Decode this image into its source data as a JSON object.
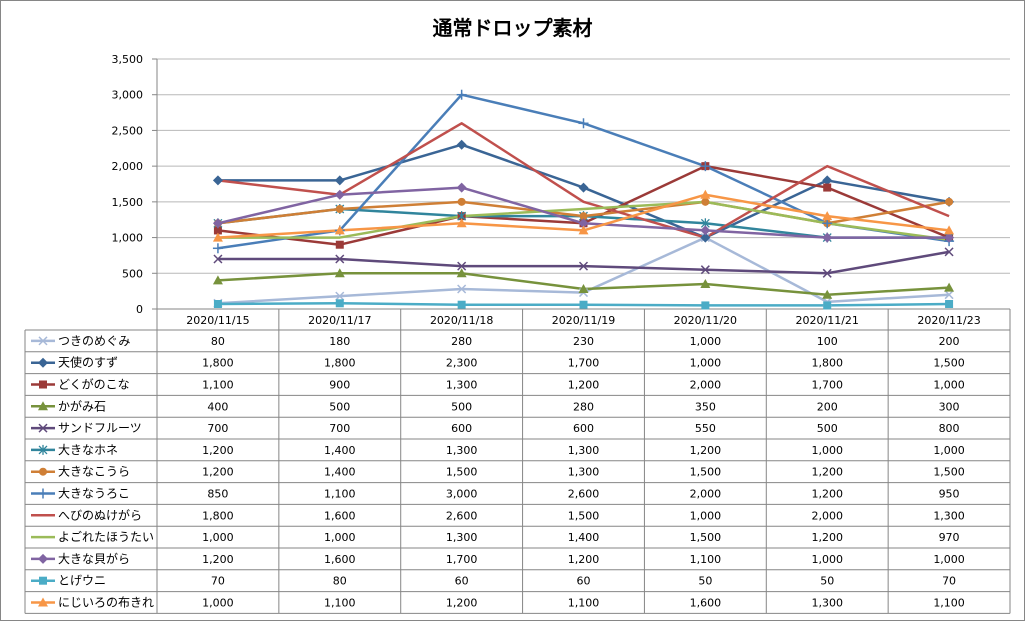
{
  "chart_data": {
    "type": "line",
    "title": "通常ドロップ素材",
    "xlabel": "",
    "ylabel": "",
    "ylim": [
      0,
      3500
    ],
    "yticks": [
      "0",
      "500",
      "1,000",
      "1,500",
      "2,000",
      "2,500",
      "3,000",
      "3,500"
    ],
    "yticks_values": [
      0,
      500,
      1000,
      1500,
      2000,
      2500,
      3000,
      3500
    ],
    "grid": true,
    "legend": "data-table",
    "categories": [
      "2020/11/15",
      "2020/11/17",
      "2020/11/18",
      "2020/11/19",
      "2020/11/20",
      "2020/11/21",
      "2020/11/23"
    ],
    "series": [
      {
        "name": "つきのめぐみ",
        "color": "#a7b9d8",
        "marker": "x",
        "values": [
          80,
          180,
          280,
          230,
          1000,
          100,
          200
        ],
        "labels": [
          "80",
          "180",
          "280",
          "230",
          "1,000",
          "100",
          "200"
        ]
      },
      {
        "name": "天使のすず",
        "color": "#3a6595",
        "marker": "diamond",
        "values": [
          1800,
          1800,
          2300,
          1700,
          1000,
          1800,
          1500
        ],
        "labels": [
          "1,800",
          "1,800",
          "2,300",
          "1,700",
          "1,000",
          "1,800",
          "1,500"
        ]
      },
      {
        "name": "どくがのこな",
        "color": "#9b3a38",
        "marker": "square",
        "values": [
          1100,
          900,
          1300,
          1200,
          2000,
          1700,
          1000
        ],
        "labels": [
          "1,100",
          "900",
          "1,300",
          "1,200",
          "2,000",
          "1,700",
          "1,000"
        ]
      },
      {
        "name": "かがみ石",
        "color": "#77923c",
        "marker": "triangle",
        "values": [
          400,
          500,
          500,
          280,
          350,
          200,
          300
        ],
        "labels": [
          "400",
          "500",
          "500",
          "280",
          "350",
          "200",
          "300"
        ]
      },
      {
        "name": "サンドフルーツ",
        "color": "#5f4a7b",
        "marker": "x",
        "values": [
          700,
          700,
          600,
          600,
          550,
          500,
          800
        ],
        "labels": [
          "700",
          "700",
          "600",
          "600",
          "550",
          "500",
          "800"
        ]
      },
      {
        "name": "大きなホネ",
        "color": "#31859c",
        "marker": "star",
        "values": [
          1200,
          1400,
          1300,
          1300,
          1200,
          1000,
          1000
        ],
        "labels": [
          "1,200",
          "1,400",
          "1,300",
          "1,300",
          "1,200",
          "1,000",
          "1,000"
        ]
      },
      {
        "name": "大きなこうら",
        "color": "#cf7f36",
        "marker": "circle",
        "values": [
          1200,
          1400,
          1500,
          1300,
          1500,
          1200,
          1500
        ],
        "labels": [
          "1,200",
          "1,400",
          "1,500",
          "1,300",
          "1,500",
          "1,200",
          "1,500"
        ]
      },
      {
        "name": "大きなうろこ",
        "color": "#4a7eb8",
        "marker": "plus",
        "values": [
          850,
          1100,
          3000,
          2600,
          2000,
          1200,
          950
        ],
        "labels": [
          "850",
          "1,100",
          "3,000",
          "2,600",
          "2,000",
          "1,200",
          "950"
        ]
      },
      {
        "name": "へびのぬけがら",
        "color": "#c0504d",
        "marker": "none",
        "values": [
          1800,
          1600,
          2600,
          1500,
          1000,
          2000,
          1300
        ],
        "labels": [
          "1,800",
          "1,600",
          "2,600",
          "1,500",
          "1,000",
          "2,000",
          "1,300"
        ]
      },
      {
        "name": "よごれたほうたい",
        "color": "#9bbb59",
        "marker": "none",
        "values": [
          1000,
          1000,
          1300,
          1400,
          1500,
          1200,
          970
        ],
        "labels": [
          "1,000",
          "1,000",
          "1,300",
          "1,400",
          "1,500",
          "1,200",
          "970"
        ]
      },
      {
        "name": "大きな貝がら",
        "color": "#8064a2",
        "marker": "diamond",
        "values": [
          1200,
          1600,
          1700,
          1200,
          1100,
          1000,
          1000
        ],
        "labels": [
          "1,200",
          "1,600",
          "1,700",
          "1,200",
          "1,100",
          "1,000",
          "1,000"
        ]
      },
      {
        "name": "とげウニ",
        "color": "#4bacc6",
        "marker": "square",
        "values": [
          70,
          80,
          60,
          60,
          50,
          50,
          70
        ],
        "labels": [
          "70",
          "80",
          "60",
          "60",
          "50",
          "50",
          "70"
        ]
      },
      {
        "name": "にじいろの布きれ",
        "color": "#f79646",
        "marker": "triangle",
        "values": [
          1000,
          1100,
          1200,
          1100,
          1600,
          1300,
          1100
        ],
        "labels": [
          "1,000",
          "1,100",
          "1,200",
          "1,100",
          "1,600",
          "1,300",
          "1,100"
        ]
      }
    ]
  }
}
